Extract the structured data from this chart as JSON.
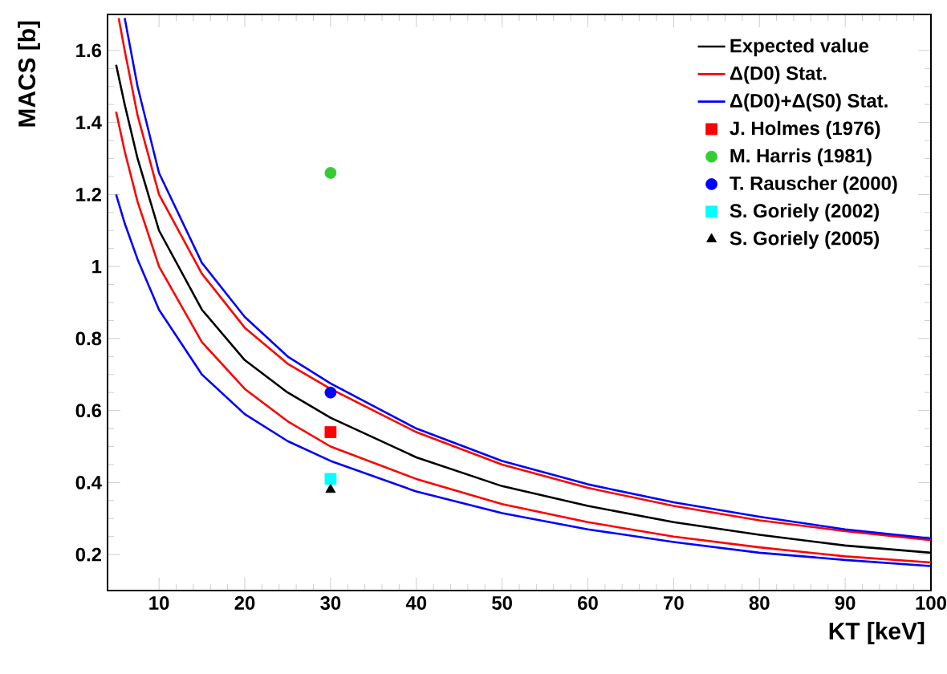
{
  "chart_data": {
    "type": "line",
    "xlabel": "KT [keV]",
    "ylabel": "MACS [b]",
    "xlim": [
      4,
      100
    ],
    "ylim": [
      0.1,
      1.7
    ],
    "xticks": [
      10,
      20,
      30,
      40,
      50,
      60,
      70,
      80,
      90,
      100
    ],
    "yticks": [
      0.2,
      0.4,
      0.6,
      0.8,
      1,
      1.2,
      1.4,
      1.6
    ],
    "legend": "top right",
    "series": [
      {
        "name": "Expected value",
        "color": "#000000",
        "marker": "none",
        "x": [
          5,
          6,
          7.5,
          10,
          15,
          20,
          25,
          30,
          40,
          50,
          60,
          70,
          80,
          90,
          100
        ],
        "values": [
          1.56,
          1.45,
          1.3,
          1.1,
          0.88,
          0.74,
          0.65,
          0.58,
          0.47,
          0.39,
          0.335,
          0.29,
          0.255,
          0.225,
          0.205
        ]
      },
      {
        "name": "Δ(D0) Stat.",
        "color": "#ff0000",
        "marker": "none",
        "x": [
          5.3,
          6,
          7.5,
          10,
          15,
          20,
          25,
          30,
          40,
          50,
          60,
          70,
          80,
          90,
          100
        ],
        "values": [
          1.69,
          1.6,
          1.42,
          1.2,
          0.98,
          0.83,
          0.73,
          0.66,
          0.54,
          0.45,
          0.385,
          0.335,
          0.295,
          0.265,
          0.24
        ]
      },
      {
        "color": "#ff0000",
        "marker": "none",
        "x": [
          5,
          6,
          7.5,
          10,
          15,
          20,
          25,
          30,
          40,
          50,
          60,
          70,
          80,
          90,
          100
        ],
        "values": [
          1.43,
          1.32,
          1.18,
          1.0,
          0.79,
          0.66,
          0.57,
          0.5,
          0.41,
          0.34,
          0.29,
          0.25,
          0.22,
          0.195,
          0.178
        ]
      },
      {
        "name": "Δ(D0)+Δ(S0) Stat.",
        "color": "#0000ff",
        "marker": "none",
        "x": [
          6,
          7.5,
          10,
          15,
          20,
          25,
          30,
          40,
          50,
          60,
          70,
          80,
          90,
          100
        ],
        "values": [
          1.69,
          1.5,
          1.26,
          1.01,
          0.86,
          0.75,
          0.675,
          0.55,
          0.46,
          0.395,
          0.345,
          0.305,
          0.27,
          0.245
        ]
      },
      {
        "color": "#0000ff",
        "marker": "none",
        "x": [
          5,
          6,
          7.5,
          10,
          15,
          20,
          25,
          30,
          40,
          50,
          60,
          70,
          80,
          90,
          100
        ],
        "values": [
          1.2,
          1.12,
          1.02,
          0.88,
          0.7,
          0.59,
          0.515,
          0.46,
          0.375,
          0.315,
          0.27,
          0.235,
          0.205,
          0.185,
          0.168
        ]
      },
      {
        "name": "J. Holmes (1976)",
        "type": "scatter",
        "color": "#ff0000",
        "marker": "square",
        "x": [
          30
        ],
        "values": [
          0.54
        ]
      },
      {
        "name": "M. Harris (1981)",
        "type": "scatter",
        "color": "#33cc33",
        "marker": "circle",
        "x": [
          30
        ],
        "values": [
          1.26
        ]
      },
      {
        "name": "T. Rauscher (2000)",
        "type": "scatter",
        "color": "#0000ff",
        "marker": "circle",
        "x": [
          30
        ],
        "values": [
          0.65
        ]
      },
      {
        "name": "S. Goriely (2002)",
        "type": "scatter",
        "color": "#00ffff",
        "marker": "square",
        "x": [
          30
        ],
        "values": [
          0.41
        ]
      },
      {
        "name": "S. Goriely (2005)",
        "type": "scatter",
        "color": "#000000",
        "marker": "triangle",
        "x": [
          30
        ],
        "values": [
          0.38
        ]
      }
    ]
  }
}
